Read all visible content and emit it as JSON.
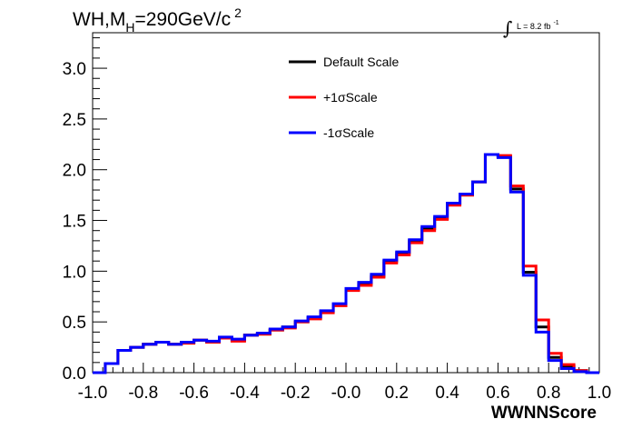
{
  "chart_data": {
    "type": "line",
    "style": "step-histogram",
    "title": {
      "pre": "WH,M",
      "sub": "H",
      "mid": "=290GeV/c",
      "sup": "2"
    },
    "luminosity": {
      "integral_symbol": "∫",
      "text": "L = 8.2 fb",
      "sup": "-1"
    },
    "xlabel": "WWNNScore",
    "ylabel": "",
    "xlim": [
      -1.0,
      1.0
    ],
    "ylim": [
      0.0,
      3.35
    ],
    "x_ticks": [
      "-1.0",
      "-0.8",
      "-0.6",
      "-0.4",
      "-0.2",
      "-0.0",
      "0.2",
      "0.4",
      "0.6",
      "0.8",
      "1.0"
    ],
    "y_ticks": [
      "0.0",
      "0.5",
      "1.0",
      "1.5",
      "2.0",
      "2.5",
      "3.0"
    ],
    "bin_edges": [
      -1.0,
      -0.95,
      -0.9,
      -0.85,
      -0.8,
      -0.75,
      -0.7,
      -0.65,
      -0.6,
      -0.55,
      -0.5,
      -0.45,
      -0.4,
      -0.35,
      -0.3,
      -0.25,
      -0.2,
      -0.15,
      -0.1,
      -0.05,
      0.0,
      0.05,
      0.1,
      0.15,
      0.2,
      0.25,
      0.3,
      0.35,
      0.4,
      0.45,
      0.5,
      0.55,
      0.6,
      0.65,
      0.7,
      0.75,
      0.8,
      0.85,
      0.9,
      0.95,
      1.0
    ],
    "series": [
      {
        "name": "Default Scale",
        "color": "#000000",
        "values": [
          0.0,
          0.09,
          0.22,
          0.25,
          0.28,
          0.3,
          0.28,
          0.3,
          0.32,
          0.3,
          0.34,
          0.32,
          0.37,
          0.38,
          0.42,
          0.45,
          0.5,
          0.54,
          0.6,
          0.67,
          0.82,
          0.88,
          0.95,
          1.1,
          1.18,
          1.3,
          1.42,
          1.52,
          1.66,
          1.75,
          1.88,
          2.15,
          2.13,
          1.81,
          0.99,
          0.45,
          0.15,
          0.06,
          0.02,
          0.0
        ]
      },
      {
        "name": "+1σScale",
        "color": "#ff0000",
        "values": [
          0.0,
          0.09,
          0.22,
          0.25,
          0.28,
          0.3,
          0.28,
          0.29,
          0.32,
          0.3,
          0.34,
          0.31,
          0.37,
          0.38,
          0.42,
          0.44,
          0.5,
          0.53,
          0.59,
          0.66,
          0.81,
          0.86,
          0.94,
          1.08,
          1.16,
          1.28,
          1.4,
          1.51,
          1.65,
          1.75,
          1.88,
          2.15,
          2.14,
          1.84,
          1.05,
          0.52,
          0.19,
          0.08,
          0.02,
          0.0
        ]
      },
      {
        "name": "-1σScale",
        "color": "#0000ff",
        "values": [
          0.0,
          0.09,
          0.22,
          0.25,
          0.28,
          0.3,
          0.28,
          0.3,
          0.32,
          0.31,
          0.35,
          0.33,
          0.37,
          0.39,
          0.43,
          0.45,
          0.51,
          0.55,
          0.61,
          0.68,
          0.83,
          0.89,
          0.97,
          1.11,
          1.19,
          1.31,
          1.44,
          1.54,
          1.67,
          1.76,
          1.88,
          2.15,
          2.12,
          1.78,
          0.96,
          0.4,
          0.12,
          0.04,
          0.01,
          0.0
        ]
      }
    ],
    "legend_position": "top-center",
    "grid": false
  }
}
